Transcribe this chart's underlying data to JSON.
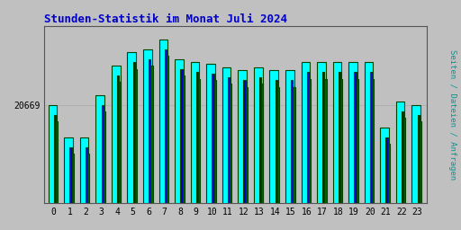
{
  "title": "Stunden-Statistik im Monat Juli 2024",
  "ylabel": "Seiten / Dateien / Anfragen",
  "xlabel_ticks": [
    0,
    1,
    2,
    3,
    4,
    5,
    6,
    7,
    8,
    9,
    10,
    11,
    12,
    13,
    14,
    15,
    16,
    17,
    18,
    19,
    20,
    21,
    22,
    23
  ],
  "ytick_label": "20669",
  "background_color": "#c0c0c0",
  "plot_bg_color": "#c0c0c0",
  "title_color": "#0000cc",
  "ylabel_color": "#009999",
  "bar_color_cyan": "#00ffff",
  "bar_color_blue": "#0000cc",
  "bar_color_green": "#006600",
  "bar_edge_color": "#004400",
  "values_cyan": [
    20450,
    20350,
    20350,
    20480,
    20570,
    20610,
    20620,
    20650,
    20590,
    20580,
    20575,
    20565,
    20555,
    20565,
    20555,
    20555,
    20580,
    20580,
    20580,
    20580,
    20580,
    20380,
    20460,
    20450
  ],
  "values_blue": [
    20420,
    20320,
    20320,
    20450,
    20540,
    20580,
    20590,
    20620,
    20560,
    20550,
    20545,
    20535,
    20525,
    20535,
    20525,
    20525,
    20550,
    20550,
    20550,
    20550,
    20550,
    20350,
    20430,
    20420
  ],
  "values_green": [
    20400,
    20300,
    20300,
    20430,
    20520,
    20560,
    20570,
    20600,
    20540,
    20530,
    20525,
    20515,
    20505,
    20515,
    20505,
    20505,
    20530,
    20530,
    20530,
    20530,
    20530,
    20330,
    20410,
    20400
  ],
  "ymin": 20150,
  "ymax": 20690,
  "ytick_val": 20450
}
